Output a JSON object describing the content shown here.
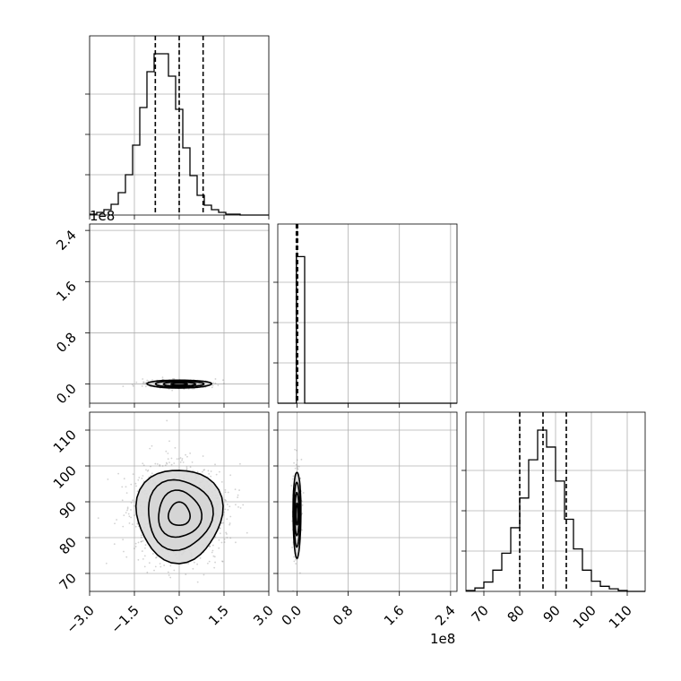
{
  "figure": {
    "panels": [
      "hist-p1",
      "scatter-p2-vs-p1",
      "hist-p2",
      "scatter-p3-vs-p1",
      "scatter-p3-vs-p2",
      "hist-p3"
    ]
  },
  "colors": {
    "line": "#000000",
    "grid": "#b0b0b0",
    "points": "#7f7f7f"
  },
  "offset_labels": {
    "row2_y": "1e8",
    "col2_x": "1e8"
  },
  "chart_data": {
    "type": "corner",
    "grid": true,
    "parameters": [
      {
        "range": [
          -3.0,
          3.0
        ],
        "ticks": [
          "−3.0",
          "−1.5",
          "0.0",
          "1.5",
          "3.0"
        ],
        "tick_values": [
          -3.0,
          -1.5,
          0.0,
          1.5,
          3.0
        ],
        "quantiles": [
          -0.8,
          0.0,
          0.8
        ],
        "hist_edges": [
          -3.0,
          -2.76,
          -2.52,
          -2.28,
          -2.04,
          -1.8,
          -1.56,
          -1.32,
          -1.08,
          -0.84,
          -0.6,
          -0.36,
          -0.12,
          0.12,
          0.36,
          0.6,
          0.84,
          1.08,
          1.32,
          1.56,
          1.8,
          2.04,
          2.28,
          2.52,
          2.76,
          3.0
        ],
        "hist_counts": [
          1,
          3,
          6,
          12,
          25,
          45,
          78,
          120,
          160,
          180,
          180,
          155,
          118,
          75,
          44,
          22,
          11,
          6,
          3,
          1,
          1,
          0,
          0,
          0,
          0
        ]
      },
      {
        "range": [
          -0.3,
          2.5
        ],
        "offset": "1e8",
        "ticks": [
          "0.0",
          "0.8",
          "1.6",
          "2.4"
        ],
        "tick_values": [
          0.0,
          0.8,
          1.6,
          2.4
        ],
        "quantiles": [
          -0.01,
          0.0,
          0.01
        ],
        "hist_edges": [
          -0.3,
          -0.01,
          0.12,
          2.5
        ],
        "hist_counts": [
          0,
          1,
          0
        ],
        "hist_ymax": 1.1
      },
      {
        "range": [
          65,
          115
        ],
        "ticks": [
          "70",
          "80",
          "90",
          "100",
          "110"
        ],
        "tick_values": [
          70,
          80,
          90,
          100,
          110
        ],
        "quantiles": [
          80,
          86.5,
          93
        ],
        "hist_edges": [
          65,
          67.5,
          70,
          72.5,
          75,
          77.5,
          80,
          82.5,
          85,
          87.5,
          90,
          92.5,
          95,
          97.5,
          100,
          102.5,
          105,
          107.5,
          110,
          112.5,
          115
        ],
        "hist_counts": [
          1,
          4,
          11,
          25,
          45,
          75,
          110,
          155,
          190,
          170,
          130,
          85,
          50,
          25,
          12,
          6,
          3,
          1,
          0,
          0
        ]
      }
    ],
    "scatter_levels": [
      0.5,
      1.0,
      1.5,
      2.0
    ]
  }
}
